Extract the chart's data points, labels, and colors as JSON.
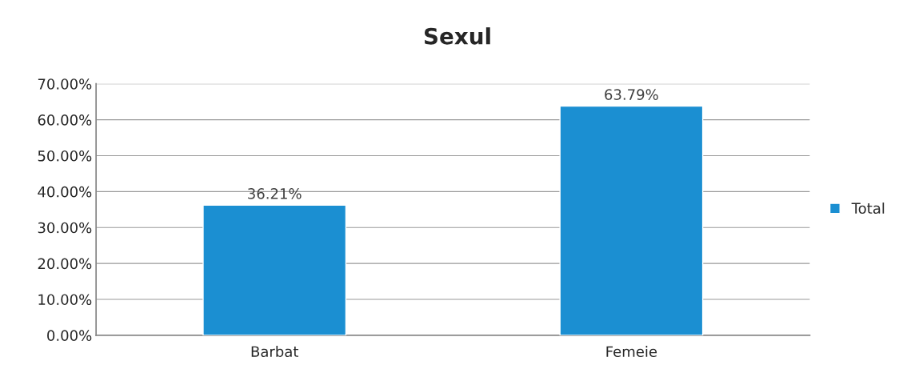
{
  "chart_data": {
    "type": "bar",
    "title": "Sexul",
    "categories": [
      "Barbat",
      "Femeie"
    ],
    "series": [
      {
        "name": "Total",
        "color": "#1b8fd2",
        "values": [
          36.21,
          63.79
        ]
      }
    ],
    "value_labels": [
      "36.21%",
      "63.79%"
    ],
    "ylim": [
      0,
      70
    ],
    "yticks": [
      {
        "value": 0,
        "label": "0.00%"
      },
      {
        "value": 10,
        "label": "10.00%"
      },
      {
        "value": 20,
        "label": "20.00%"
      },
      {
        "value": 30,
        "label": "30.00%"
      },
      {
        "value": 40,
        "label": "40.00%"
      },
      {
        "value": 50,
        "label": "50.00%"
      },
      {
        "value": 60,
        "label": "60.00%"
      },
      {
        "value": 70,
        "label": "70.00%"
      }
    ],
    "grid": "y",
    "legend": "right"
  }
}
